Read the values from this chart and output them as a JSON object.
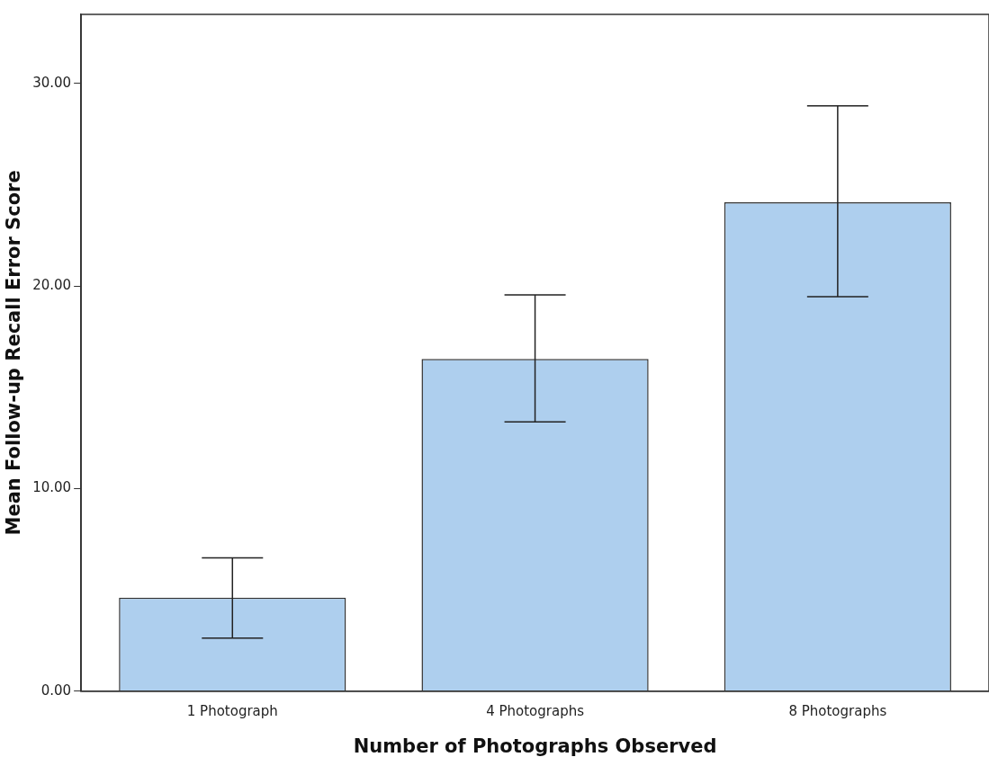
{
  "chart_data": {
    "type": "bar",
    "xlabel": "Number of Photographs Observed",
    "ylabel": "Mean Follow-up Recall Error Score",
    "categories": [
      "1 Photograph",
      "4 Photographs",
      "8 Photographs"
    ],
    "values": [
      4.62,
      16.4,
      24.13
    ],
    "errors": [
      [
        2.62,
        6.58
      ],
      [
        13.29,
        19.56
      ],
      [
        19.47,
        28.89
      ]
    ],
    "color": "#aecfee",
    "ylim": [
      0,
      33.4
    ],
    "yticks": [
      {
        "value": 0,
        "label": "0.00"
      },
      {
        "value": 10,
        "label": "10.00"
      },
      {
        "value": 20,
        "label": "20.00"
      },
      {
        "value": 30,
        "label": "30.00"
      }
    ],
    "grid": false,
    "legend": false
  }
}
